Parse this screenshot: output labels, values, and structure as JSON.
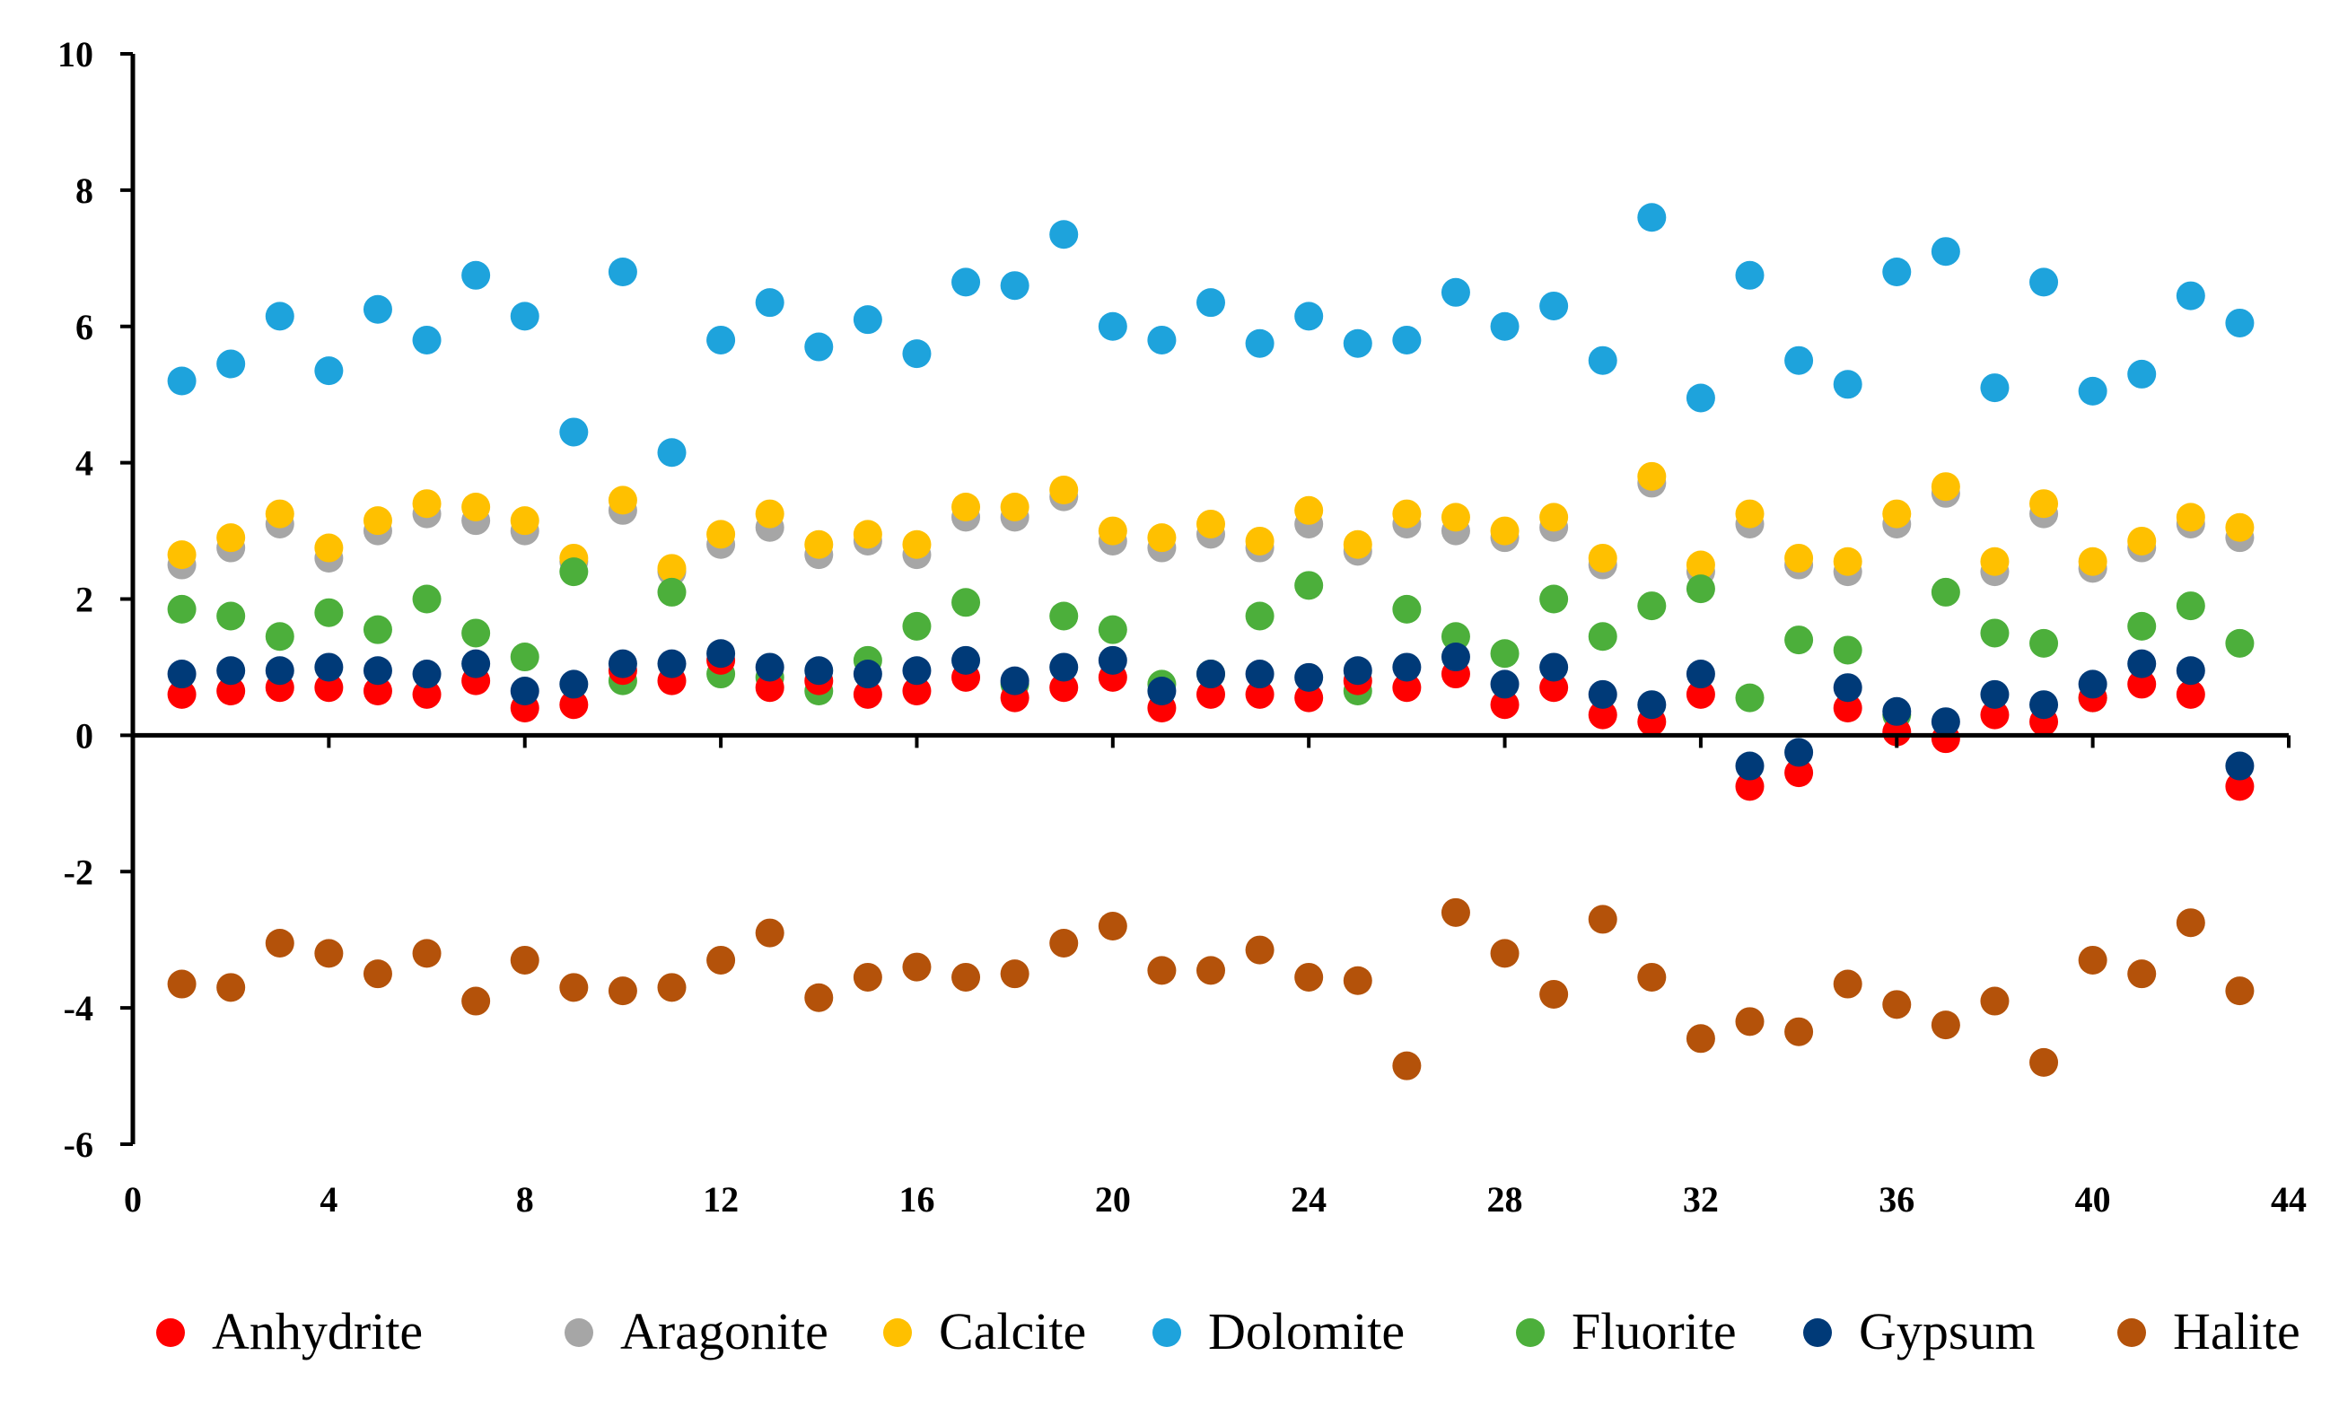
{
  "chart_data": {
    "type": "scatter",
    "title": "",
    "xlabel": "",
    "ylabel": "",
    "xlim": [
      0,
      44
    ],
    "ylim": [
      -6,
      10
    ],
    "xticks": [
      "0",
      "4",
      "8",
      "12",
      "16",
      "20",
      "24",
      "28",
      "32",
      "36",
      "40",
      "44"
    ],
    "yticks": [
      "10",
      "8",
      "6",
      "4",
      "2",
      "0",
      "-2",
      "-4",
      "-6"
    ],
    "legend_position": "bottom",
    "x": [
      1,
      2,
      3,
      4,
      5,
      6,
      7,
      8,
      9,
      10,
      11,
      12,
      13,
      14,
      15,
      16,
      17,
      18,
      19,
      20,
      21,
      22,
      23,
      24,
      25,
      26,
      27,
      28,
      29,
      30,
      31,
      32,
      33,
      34,
      35,
      36,
      37,
      38,
      39,
      40,
      41,
      42,
      43
    ],
    "series": [
      {
        "name": "Aragonite",
        "color": "#a6a6a6",
        "values": [
          2.5,
          2.75,
          3.1,
          2.6,
          3.0,
          3.25,
          3.15,
          3.0,
          2.55,
          3.3,
          2.4,
          2.8,
          3.05,
          2.65,
          2.85,
          2.65,
          3.2,
          3.2,
          3.5,
          2.85,
          2.75,
          2.95,
          2.75,
          3.1,
          2.7,
          3.1,
          3.0,
          2.9,
          3.05,
          2.5,
          3.7,
          2.4,
          3.1,
          2.5,
          2.4,
          3.1,
          3.55,
          2.4,
          3.25,
          2.45,
          2.75,
          3.1,
          2.9
        ]
      },
      {
        "name": "Calcite",
        "color": "#ffc000",
        "values": [
          2.65,
          2.9,
          3.25,
          2.75,
          3.15,
          3.4,
          3.35,
          3.15,
          2.6,
          3.45,
          2.45,
          2.95,
          3.25,
          2.8,
          2.95,
          2.8,
          3.35,
          3.35,
          3.6,
          3.0,
          2.9,
          3.1,
          2.85,
          3.3,
          2.8,
          3.25,
          3.2,
          3.0,
          3.2,
          2.6,
          3.8,
          2.5,
          3.25,
          2.6,
          2.55,
          3.25,
          3.65,
          2.55,
          3.4,
          2.55,
          2.85,
          3.2,
          3.05
        ]
      },
      {
        "name": "Dolomite",
        "color": "#1ea3dc",
        "values": [
          5.2,
          5.45,
          6.15,
          5.35,
          6.25,
          5.8,
          6.75,
          6.15,
          4.45,
          6.8,
          4.15,
          5.8,
          6.35,
          5.7,
          6.1,
          5.6,
          6.65,
          6.6,
          7.35,
          6.0,
          5.8,
          6.35,
          5.75,
          6.15,
          5.75,
          5.8,
          6.5,
          6.0,
          6.3,
          5.5,
          7.6,
          4.95,
          6.75,
          5.5,
          5.15,
          6.8,
          7.1,
          5.1,
          6.65,
          5.05,
          5.3,
          6.45,
          6.05
        ]
      },
      {
        "name": "Fluorite",
        "color": "#4caf3b",
        "values": [
          1.85,
          1.75,
          1.45,
          1.8,
          1.55,
          2.0,
          1.5,
          1.15,
          2.4,
          0.8,
          2.1,
          0.9,
          0.85,
          0.65,
          1.1,
          1.6,
          1.95,
          0.75,
          1.75,
          1.55,
          0.75,
          0.9,
          1.75,
          2.2,
          0.65,
          1.85,
          1.45,
          1.2,
          2.0,
          1.45,
          1.9,
          2.15,
          0.55,
          1.4,
          1.25,
          0.3,
          2.1,
          1.5,
          1.35,
          0.55,
          1.6,
          1.9,
          1.35
        ]
      },
      {
        "name": "Anhydrite",
        "color": "#ff0000",
        "values": [
          0.6,
          0.65,
          0.7,
          0.7,
          0.65,
          0.6,
          0.8,
          0.4,
          0.45,
          0.95,
          0.8,
          1.1,
          0.7,
          0.8,
          0.6,
          0.65,
          0.85,
          0.55,
          0.7,
          0.85,
          0.4,
          0.6,
          0.6,
          0.55,
          0.8,
          0.7,
          0.9,
          0.45,
          0.7,
          0.3,
          0.2,
          0.6,
          -0.75,
          -0.55,
          0.4,
          0.05,
          -0.05,
          0.3,
          0.2,
          0.55,
          0.75,
          0.6,
          -0.75
        ]
      },
      {
        "name": "Gypsum",
        "color": "#003a78",
        "values": [
          0.9,
          0.95,
          0.95,
          1.0,
          0.95,
          0.9,
          1.05,
          0.65,
          0.75,
          1.05,
          1.05,
          1.2,
          1.0,
          0.95,
          0.9,
          0.95,
          1.1,
          0.8,
          1.0,
          1.1,
          0.65,
          0.9,
          0.9,
          0.85,
          0.95,
          1.0,
          1.15,
          0.75,
          1.0,
          0.6,
          0.45,
          0.9,
          -0.45,
          -0.25,
          0.7,
          0.35,
          0.2,
          0.6,
          0.45,
          0.75,
          1.05,
          0.95,
          -0.45
        ]
      },
      {
        "name": "Halite",
        "color": "#b4520a",
        "values": [
          -3.65,
          -3.7,
          -3.05,
          -3.2,
          -3.5,
          -3.2,
          -3.9,
          -3.3,
          -3.7,
          -3.75,
          -3.7,
          -3.3,
          -2.9,
          -3.85,
          -3.55,
          -3.4,
          -3.55,
          -3.5,
          -3.05,
          -2.8,
          -3.45,
          -3.45,
          -3.15,
          -3.55,
          -3.6,
          -4.85,
          -2.6,
          -3.2,
          -3.8,
          -2.7,
          -3.55,
          -4.45,
          -4.2,
          -4.35,
          -3.65,
          -3.95,
          -4.25,
          -3.9,
          -4.8,
          -3.3,
          -3.5,
          -2.75,
          -3.75
        ]
      }
    ],
    "legend": [
      {
        "label": "Anhydrite",
        "color": "#ff0000"
      },
      {
        "label": "Aragonite",
        "color": "#a6a6a6"
      },
      {
        "label": "Calcite",
        "color": "#ffc000"
      },
      {
        "label": "Dolomite",
        "color": "#1ea3dc"
      },
      {
        "label": "Fluorite",
        "color": "#4caf3b"
      },
      {
        "label": "Gypsum",
        "color": "#003a78"
      },
      {
        "label": "Halite",
        "color": "#b4520a"
      }
    ]
  }
}
